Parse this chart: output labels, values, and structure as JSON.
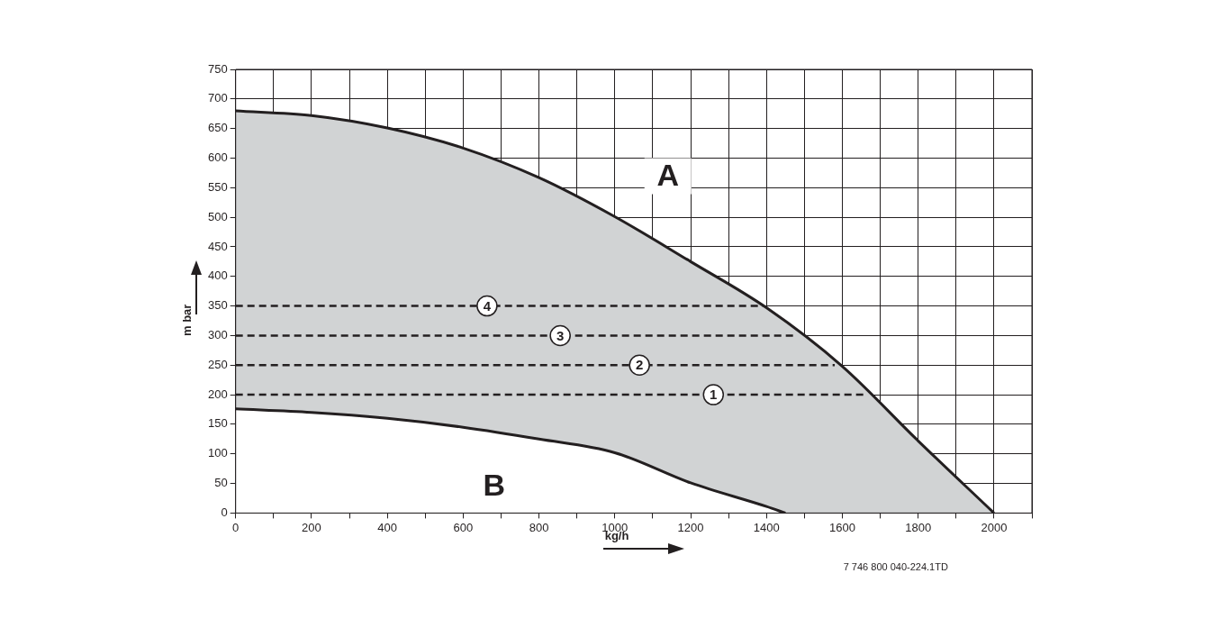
{
  "chart_data": {
    "type": "line",
    "xlabel": "kg/h",
    "ylabel": "m bar",
    "xlim": [
      0,
      2100
    ],
    "ylim": [
      0,
      750
    ],
    "xticks": [
      0,
      {
        "value": 100,
        "label": null
      },
      200,
      {
        "value": 300,
        "label": null
      },
      400,
      {
        "value": 500,
        "label": null
      },
      600,
      {
        "value": 700,
        "label": null
      },
      800,
      {
        "value": 900,
        "label": null
      },
      1000,
      {
        "value": 1100,
        "label": null
      },
      1200,
      {
        "value": 1300,
        "label": null
      },
      1400,
      {
        "value": 1500,
        "label": null
      },
      1600,
      {
        "value": 1700,
        "label": null
      },
      1800,
      {
        "value": 1900,
        "label": null
      },
      2000,
      {
        "value": 2100,
        "label": null
      }
    ],
    "yticks": [
      0,
      50,
      100,
      150,
      200,
      250,
      300,
      350,
      400,
      450,
      500,
      550,
      600,
      650,
      700,
      750
    ],
    "grid": true,
    "legend": false,
    "marker": "none",
    "series": [
      {
        "type": "area",
        "name": "A",
        "color": "#d1d3d4",
        "x": [
          0,
          200,
          400,
          600,
          800,
          1000,
          1200,
          1400,
          1600,
          1800,
          2000
        ],
        "values": [
          680,
          672,
          651,
          617,
          567,
          501,
          425,
          347,
          248,
          122,
          0
        ]
      },
      {
        "type": "line",
        "name": "B",
        "color": "#231f20",
        "x": [
          0,
          200,
          400,
          600,
          800,
          1000,
          1200,
          1400,
          1450
        ],
        "values": [
          176,
          170,
          160,
          145,
          125,
          102,
          51,
          11,
          0
        ]
      },
      {
        "type": "line",
        "line_style": "dashed",
        "color": "#231f20",
        "x": [
          0,
          1390
        ],
        "values": [
          350,
          350
        ]
      },
      {
        "type": "line",
        "line_style": "dashed",
        "color": "#231f20",
        "x": [
          0,
          1480
        ],
        "values": [
          300,
          300
        ]
      },
      {
        "type": "line",
        "line_style": "dashed",
        "color": "#231f20",
        "x": [
          0,
          1580
        ],
        "values": [
          250,
          250
        ]
      },
      {
        "type": "line",
        "line_style": "dashed",
        "color": "#231f20",
        "x": [
          0,
          1660
        ],
        "values": [
          200,
          200
        ]
      }
    ],
    "annotations": [
      {
        "text": "4",
        "x": 663,
        "y": 350
      },
      {
        "text": "3",
        "x": 856,
        "y": 300
      },
      {
        "text": "2",
        "x": 1065,
        "y": 250
      },
      {
        "text": "1",
        "x": 1260,
        "y": 200
      },
      "7 746 800 040-224.1TD"
    ]
  }
}
